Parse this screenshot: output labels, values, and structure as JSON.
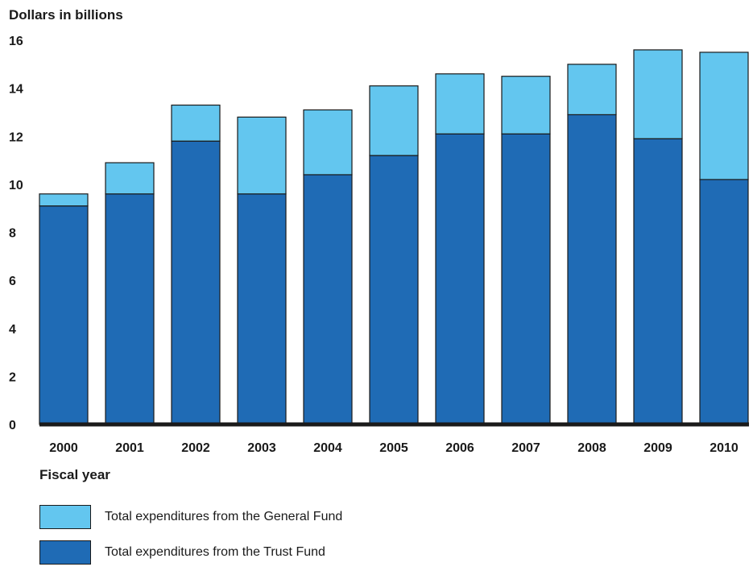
{
  "chart_data": {
    "type": "bar",
    "stacked": true,
    "ylabel": "Dollars in billions",
    "xlabel": "Fiscal year",
    "categories": [
      "2000",
      "2001",
      "2002",
      "2003",
      "2004",
      "2005",
      "2006",
      "2007",
      "2008",
      "2009",
      "2010"
    ],
    "ylim": [
      0,
      16
    ],
    "yticks": [
      "0",
      "2",
      "4",
      "6",
      "8",
      "10",
      "12",
      "14",
      "16"
    ],
    "grid": false,
    "legend_position": "bottom-left",
    "series": [
      {
        "name": "Total expenditures from the Trust Fund",
        "color": "#1f6bb5",
        "values": [
          9.1,
          9.6,
          11.8,
          9.6,
          10.4,
          11.2,
          12.1,
          12.1,
          12.9,
          11.9,
          10.2
        ]
      },
      {
        "name": "Total expenditures from the General Fund",
        "color": "#63c6ef",
        "values": [
          0.5,
          1.3,
          1.5,
          3.2,
          2.7,
          2.9,
          2.5,
          2.4,
          2.1,
          3.7,
          5.3
        ]
      }
    ]
  },
  "legend": {
    "items": [
      {
        "label": "Total expenditures from the General Fund",
        "color": "#63c6ef"
      },
      {
        "label": "Total expenditures from the Trust Fund",
        "color": "#1f6bb5"
      }
    ]
  }
}
